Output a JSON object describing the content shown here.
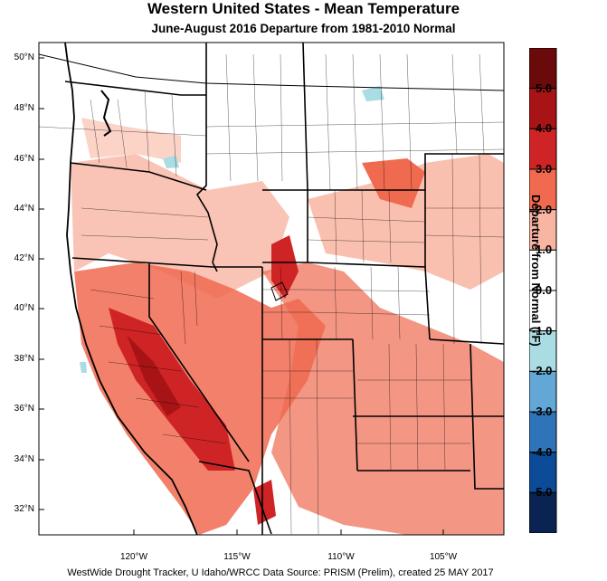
{
  "title": "Western United States - Mean Temperature",
  "subtitle": "June-August 2016  Departure from 1981-2010 Normal",
  "credit": "WestWide Drought Tracker, U Idaho/WRCC Data Source: PRISM (Prelim), created 25 MAY 2017",
  "latitude_labels": [
    "50°N",
    "48°N",
    "46°N",
    "44°N",
    "42°N",
    "40°N",
    "38°N",
    "36°N",
    "34°N",
    "32°N"
  ],
  "longitude_labels": [
    "120°W",
    "115°W",
    "110°W",
    "105°W"
  ],
  "legend": {
    "title": "Departure from Normal (°F)",
    "labels": [
      "5.0",
      "4.0",
      "3.0",
      "2.0",
      "1.0",
      "0.0",
      "-1.0",
      "-2.0",
      "-3.0",
      "-4.0",
      "-5.0"
    ],
    "colors": [
      "#6b0a0a",
      "#a81416",
      "#cf2426",
      "#f06a50",
      "#f8b5a2",
      "#ffffff",
      "#ffffff",
      "#a9dce3",
      "#62a7d5",
      "#2f73b8",
      "#0b4b97",
      "#0b2352"
    ]
  },
  "map_colors": {
    "light_warm": "#f8b5a2",
    "medium_warm": "#f06a50",
    "strong_warm": "#cf2426",
    "very_strong_warm": "#a81416",
    "cool": "#a9dce3"
  }
}
